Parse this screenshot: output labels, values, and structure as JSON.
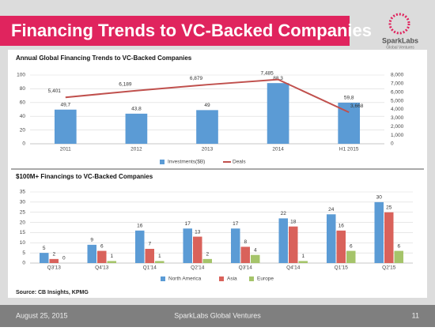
{
  "slide": {
    "title": "Financing Trends to VC-Backed Companies",
    "logo_name": "SparkLabs",
    "logo_subtitle": "Global Ventures",
    "source": "Source: CB Insights, KPMG",
    "date": "August 25, 2015",
    "footer_text": "SparkLabs Global Ventures",
    "page_number": "11"
  },
  "chart_data": [
    {
      "type": "bar",
      "title": "Annual Global Financing Trends to VC-Backed Companies",
      "categories": [
        "2011",
        "2012",
        "2013",
        "2014",
        "H1 2015"
      ],
      "series": [
        {
          "name": "Investments($B)",
          "color": "#5b9bd5",
          "values": [
            49.7,
            43.8,
            49,
            88.3,
            59.8
          ],
          "value_labels": [
            "49,7",
            "43,8",
            "49",
            "88,3",
            "59,8"
          ]
        },
        {
          "name": "Deals",
          "type": "line",
          "axis": "y2",
          "color": "#c0504d",
          "values": [
            5401,
            6189,
            6879,
            7485,
            3668
          ],
          "value_labels": [
            "5,401",
            "6,189",
            "6,879",
            "7,485",
            "3,668"
          ]
        }
      ],
      "ylim": [
        0,
        100
      ],
      "yticks": [
        0,
        20,
        40,
        60,
        80,
        100
      ],
      "y2lim": [
        0,
        8000
      ],
      "y2ticks": [
        0,
        {
          "value": 1000,
          "label": "1,000"
        },
        {
          "value": 2000,
          "label": "2,000"
        },
        {
          "value": 3000,
          "label": "3,000"
        },
        {
          "value": 4000,
          "label": "4,000"
        },
        {
          "value": 5000,
          "label": "5,000"
        },
        {
          "value": 6000,
          "label": "6,000"
        },
        {
          "value": 7000,
          "label": "7,000"
        },
        {
          "value": 8000,
          "label": "8,000"
        }
      ],
      "grid": true,
      "legend": "bottom"
    },
    {
      "type": "bar",
      "title": "$100M+ Financings to VC-Backed Companies",
      "categories": [
        "Q3'13",
        "Q4'13",
        "Q1'14",
        "Q2'14",
        "Q3'14",
        "Q4'14",
        "Q1'15",
        "Q2'15"
      ],
      "series": [
        {
          "name": "North America",
          "color": "#5b9bd5",
          "values": [
            5,
            9,
            16,
            17,
            17,
            22,
            24,
            30
          ]
        },
        {
          "name": "Asia",
          "color": "#d9625b",
          "values": [
            2,
            6,
            7,
            13,
            8,
            18,
            16,
            25
          ]
        },
        {
          "name": "Europe",
          "color": "#a5c46a",
          "values": [
            0,
            1,
            1,
            2,
            4,
            1,
            6,
            6
          ]
        }
      ],
      "ylim": [
        0,
        35
      ],
      "yticks": [
        0,
        5,
        10,
        15,
        20,
        25,
        30,
        35
      ],
      "grid": true,
      "legend": "bottom"
    }
  ]
}
